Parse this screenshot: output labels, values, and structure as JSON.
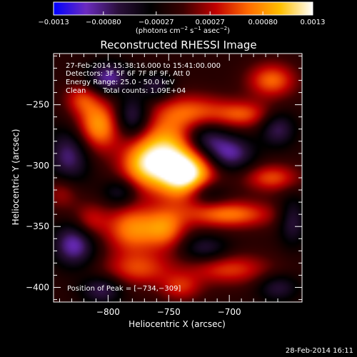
{
  "chart_data": {
    "type": "heatmap",
    "title": "Reconstructed RHESSI Image",
    "xlabel": "Heliocentric X (arcsec)",
    "ylabel": "Heliocentric Y (arcsec)",
    "xlim": [
      -845,
      -640
    ],
    "ylim": [
      -412,
      -208
    ],
    "xticks": [
      -800,
      -750,
      -700
    ],
    "xtick_labels": [
      "−800",
      "−750",
      "−700"
    ],
    "yticks": [
      -250,
      -300,
      -350,
      -400
    ],
    "ytick_labels": [
      "−250",
      "−300",
      "−350",
      "−400"
    ],
    "colorbar": {
      "range": [
        -0.0013,
        0.0013
      ],
      "ticks": [
        -0.0013,
        -0.0008,
        -0.00027,
        0.00027,
        0.0008,
        0.0013
      ],
      "tick_labels": [
        "−0.0013",
        "−0.00080",
        "−0.00027",
        "0.00027",
        "0.00080",
        "0.0013"
      ],
      "unit_label_parts": [
        "(photons cm",
        "−2",
        " s",
        "−1",
        " asec",
        "−2",
        ")"
      ],
      "colors": [
        "#0000ff",
        "#6b2bbf",
        "#2a0f3a",
        "#000000",
        "#3a0000",
        "#c00000",
        "#ff6a00",
        "#ffc000",
        "#ffffff"
      ]
    },
    "annotations": {
      "time_range": "27-Feb-2014 15:38:16.000 to 15:41:00.000",
      "detectors": "Detectors: 3F 5F 6F 7F 8F 9F, Att 0",
      "energy": "Energy Range: 25.0 - 50.0 keV",
      "method": "Clean",
      "counts": "Total counts: 1.09E+04",
      "peak": "Position of Peak = [−734,−309]"
    },
    "peak": {
      "x": -734,
      "y": -309
    },
    "blobs": [
      {
        "x": -734,
        "y": -309,
        "amp": 0.0013,
        "sx": 16,
        "sy": 14
      },
      {
        "x": -752,
        "y": -288,
        "amp": 0.00105,
        "sx": 18,
        "sy": 20
      },
      {
        "x": -772,
        "y": -300,
        "amp": 0.00075,
        "sx": 14,
        "sy": 14
      },
      {
        "x": -808,
        "y": -267,
        "amp": 0.00095,
        "sx": 13,
        "sy": 15
      },
      {
        "x": -822,
        "y": -245,
        "amp": 0.0005,
        "sx": 10,
        "sy": 9
      },
      {
        "x": -730,
        "y": -255,
        "amp": 0.0006,
        "sx": 22,
        "sy": 10
      },
      {
        "x": -665,
        "y": -230,
        "amp": 0.00075,
        "sx": 14,
        "sy": 10
      },
      {
        "x": -688,
        "y": -258,
        "amp": 0.0006,
        "sx": 16,
        "sy": 8
      },
      {
        "x": -700,
        "y": -340,
        "amp": 0.0008,
        "sx": 26,
        "sy": 8
      },
      {
        "x": -665,
        "y": -310,
        "amp": 0.00065,
        "sx": 16,
        "sy": 8
      },
      {
        "x": -700,
        "y": -385,
        "amp": 0.0006,
        "sx": 24,
        "sy": 9
      },
      {
        "x": -780,
        "y": -352,
        "amp": 0.00085,
        "sx": 16,
        "sy": 14
      },
      {
        "x": -752,
        "y": -352,
        "amp": 0.0007,
        "sx": 12,
        "sy": 12
      },
      {
        "x": -775,
        "y": -385,
        "amp": 0.0006,
        "sx": 20,
        "sy": 10
      },
      {
        "x": -815,
        "y": -345,
        "amp": 0.00045,
        "sx": 10,
        "sy": 10
      },
      {
        "x": -740,
        "y": -400,
        "amp": 0.0005,
        "sx": 12,
        "sy": 8
      },
      {
        "x": -838,
        "y": -322,
        "amp": 0.0004,
        "sx": 10,
        "sy": 10
      },
      {
        "x": -800,
        "y": -228,
        "amp": -0.0008,
        "sx": 12,
        "sy": 9
      },
      {
        "x": -780,
        "y": -260,
        "amp": -0.0007,
        "sx": 10,
        "sy": 12
      },
      {
        "x": -720,
        "y": -278,
        "amp": -0.0006,
        "sx": 12,
        "sy": 9
      },
      {
        "x": -700,
        "y": -290,
        "amp": -0.0008,
        "sx": 14,
        "sy": 10
      },
      {
        "x": -660,
        "y": -270,
        "amp": -0.0006,
        "sx": 10,
        "sy": 10
      },
      {
        "x": -648,
        "y": -345,
        "amp": -0.00055,
        "sx": 8,
        "sy": 14
      },
      {
        "x": -720,
        "y": -322,
        "amp": -0.0006,
        "sx": 12,
        "sy": 8
      },
      {
        "x": -832,
        "y": -292,
        "amp": -0.0007,
        "sx": 12,
        "sy": 16
      },
      {
        "x": -828,
        "y": -365,
        "amp": -0.00085,
        "sx": 12,
        "sy": 12
      },
      {
        "x": -805,
        "y": -402,
        "amp": -0.0006,
        "sx": 12,
        "sy": 8
      },
      {
        "x": -720,
        "y": -368,
        "amp": -0.0005,
        "sx": 14,
        "sy": 8
      },
      {
        "x": -660,
        "y": -400,
        "amp": -0.0005,
        "sx": 12,
        "sy": 8
      },
      {
        "x": -790,
        "y": -322,
        "amp": -0.0005,
        "sx": 10,
        "sy": 8
      },
      {
        "x": -760,
        "y": -235,
        "amp": -0.0005,
        "sx": 10,
        "sy": 8
      }
    ]
  },
  "footer": {
    "timestamp": "28-Feb-2014 16:11"
  }
}
